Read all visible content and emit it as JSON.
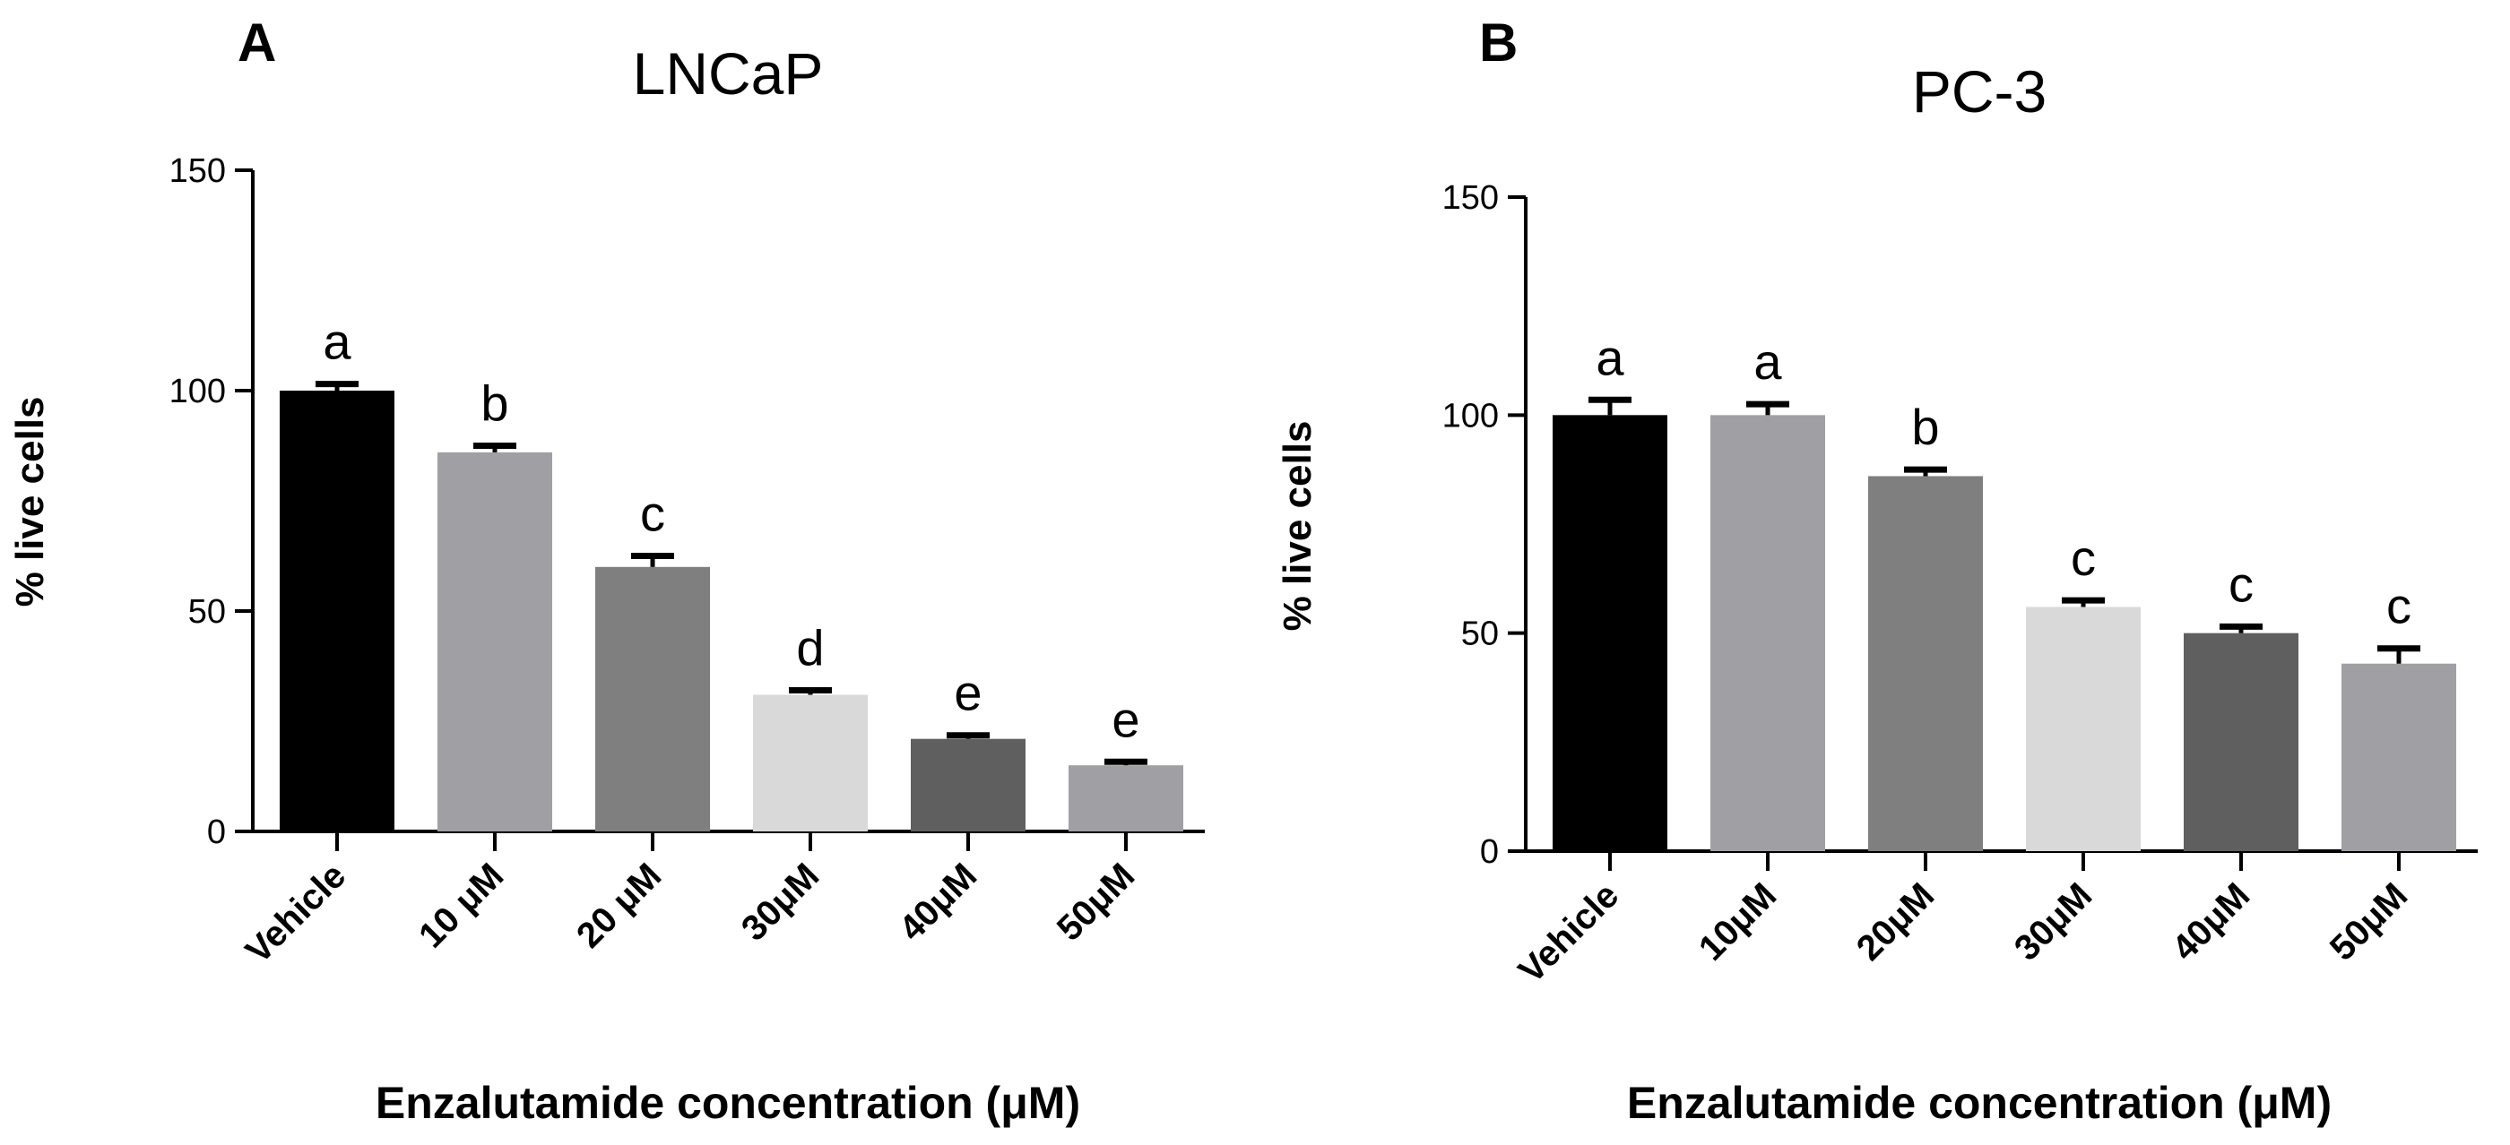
{
  "chart_data": [
    {
      "type": "bar",
      "panel_label": "A",
      "title": "LNCaP",
      "categories": [
        "Vehicle",
        "10 μM",
        "20 μM",
        "30μM",
        "40μM",
        "50μM"
      ],
      "values": [
        100,
        86,
        60,
        31,
        21,
        15
      ],
      "errors": [
        1.5,
        1.5,
        2.5,
        1.0,
        0.8,
        0.8
      ],
      "significance_letters": [
        "a",
        "b",
        "c",
        "d",
        "e",
        "e"
      ],
      "bar_colors": [
        "#000000",
        "#a0a0a4",
        "#7f7f7f",
        "#d9d9d9",
        "#5f5f5f",
        "#a0a0a4"
      ],
      "xlabel": "Enzalutamide concentration (μM)",
      "ylabel": "% live cells",
      "ylim": [
        0,
        150
      ],
      "yticks": [
        0,
        50,
        100,
        150
      ]
    },
    {
      "type": "bar",
      "panel_label": "B",
      "title": "PC-3",
      "categories": [
        "Vehicle",
        "10μM",
        "20μM",
        "30μM",
        "40μM",
        "50μM"
      ],
      "values": [
        100,
        100,
        86,
        56,
        50,
        43
      ],
      "errors": [
        3.5,
        2.5,
        1.5,
        1.5,
        1.5,
        3.5
      ],
      "significance_letters": [
        "a",
        "a",
        "b",
        "c",
        "c",
        "c"
      ],
      "bar_colors": [
        "#000000",
        "#a0a0a4",
        "#7f7f7f",
        "#d9d9d9",
        "#5f5f5f",
        "#a0a0a4"
      ],
      "xlabel": "Enzalutamide concentration (μM)",
      "ylabel": "% live cells",
      "ylim": [
        0,
        150
      ],
      "yticks": [
        0,
        50,
        100,
        150
      ]
    }
  ]
}
